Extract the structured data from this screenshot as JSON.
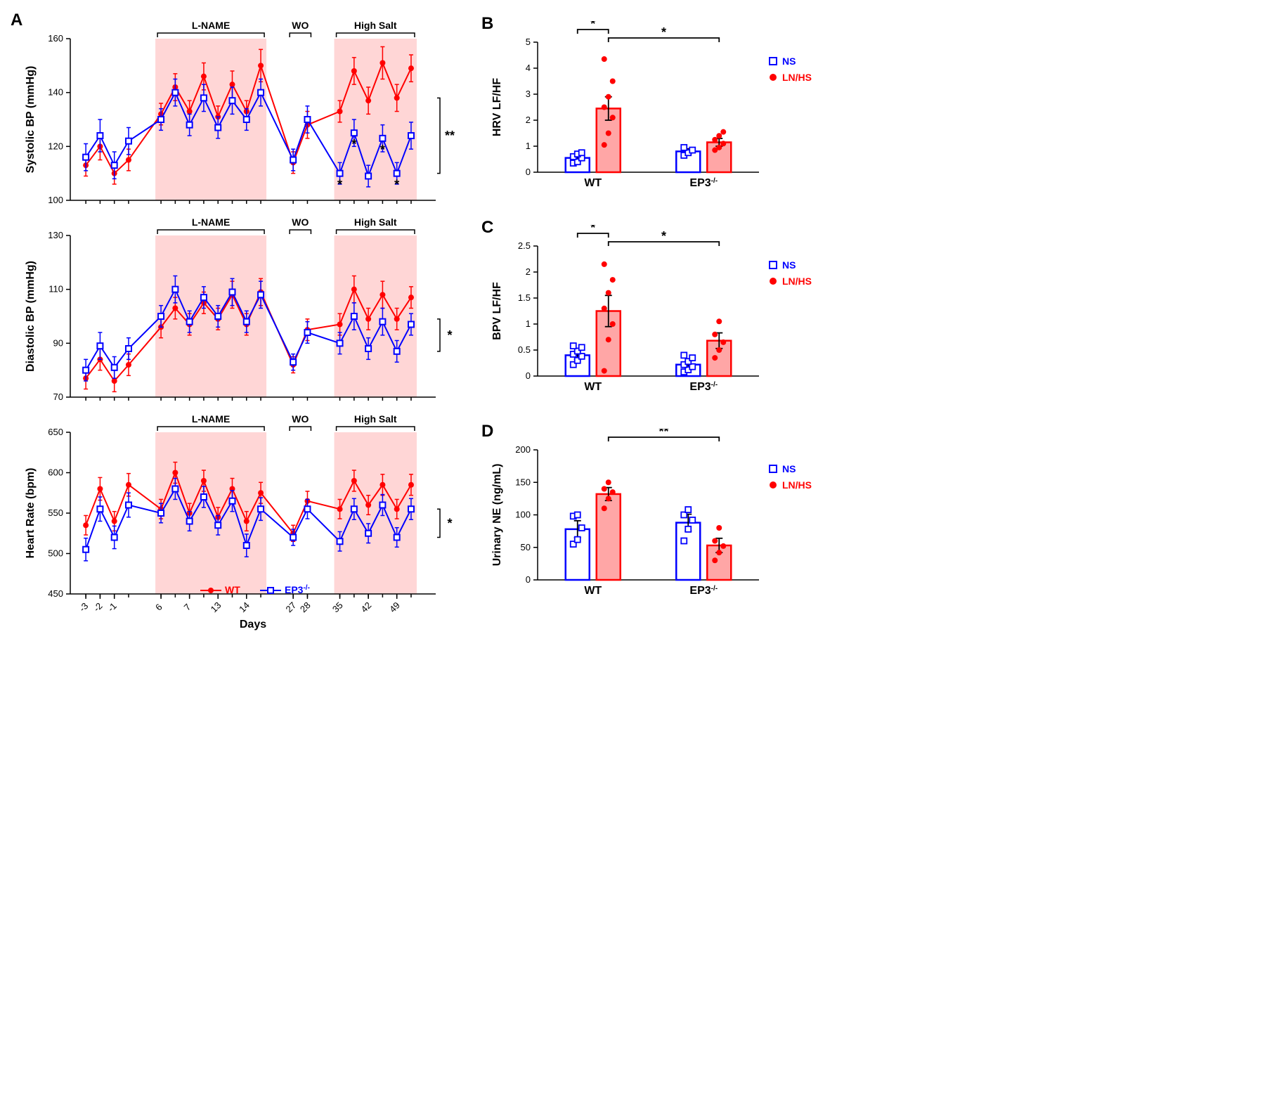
{
  "colors": {
    "wt": "#ff0000",
    "ep3": "#0000ff",
    "shade": "#ffd6d6",
    "black": "#000000"
  },
  "panelA": {
    "label": "A",
    "xlabel": "Days",
    "xticks": [
      "-3",
      "-2",
      "-1",
      "6",
      "7",
      "13",
      "14",
      "27",
      "28",
      "35",
      "42",
      "49"
    ],
    "phases": {
      "lname": "L-NAME",
      "wo": "WO",
      "hs": "High Salt"
    },
    "legend": {
      "wt": "WT",
      "ep3_html": "EP3",
      "ep3_sup": "-/-"
    },
    "sbp": {
      "ylabel": "Systolic BP (mmHg)",
      "ylim": [
        100,
        160
      ],
      "ytick": 20,
      "wt": [
        113,
        120,
        110,
        115,
        132,
        142,
        133,
        146,
        131,
        143,
        133,
        150,
        114,
        128,
        133,
        148,
        137,
        151,
        138,
        149
      ],
      "ep3": [
        116,
        124,
        113,
        122,
        130,
        140,
        128,
        138,
        127,
        137,
        130,
        140,
        115,
        130,
        110,
        125,
        109,
        123,
        110,
        124
      ],
      "err_wt": [
        4,
        5,
        4,
        4,
        4,
        5,
        4,
        5,
        4,
        5,
        4,
        6,
        4,
        5,
        4,
        5,
        5,
        6,
        5,
        5
      ],
      "err_ep3": [
        5,
        6,
        5,
        5,
        4,
        5,
        4,
        5,
        4,
        5,
        4,
        5,
        4,
        5,
        4,
        5,
        4,
        5,
        4,
        5
      ],
      "sig_right": "**",
      "sig_points": [
        "",
        "",
        "",
        "",
        "",
        "",
        "",
        "",
        "",
        "",
        "",
        "",
        "",
        "",
        "*",
        "*",
        "",
        "*",
        "*",
        ""
      ]
    },
    "dbp": {
      "ylabel": "Diastolic BP (mmHg)",
      "ylim": [
        70,
        130
      ],
      "ytick": 20,
      "wt": [
        77,
        84,
        76,
        82,
        96,
        103,
        97,
        105,
        99,
        108,
        97,
        109,
        82,
        95,
        97,
        110,
        99,
        108,
        99,
        107
      ],
      "ep3": [
        80,
        89,
        81,
        88,
        100,
        110,
        98,
        107,
        100,
        109,
        98,
        108,
        83,
        94,
        90,
        100,
        88,
        98,
        87,
        97
      ],
      "err_wt": [
        4,
        4,
        4,
        4,
        4,
        4,
        4,
        4,
        4,
        5,
        4,
        5,
        3,
        4,
        4,
        5,
        4,
        5,
        4,
        4
      ],
      "err_ep3": [
        4,
        5,
        4,
        4,
        4,
        5,
        4,
        4,
        4,
        5,
        4,
        5,
        3,
        4,
        4,
        5,
        4,
        5,
        4,
        4
      ],
      "sig_right": "*"
    },
    "hr": {
      "ylabel": "Heart Rate (bpm)",
      "ylim": [
        450,
        650
      ],
      "ytick": 50,
      "wt": [
        535,
        580,
        540,
        585,
        555,
        600,
        550,
        590,
        545,
        580,
        540,
        575,
        525,
        565,
        555,
        590,
        560,
        585,
        555,
        585
      ],
      "ep3": [
        505,
        555,
        520,
        560,
        550,
        580,
        540,
        570,
        535,
        565,
        510,
        555,
        520,
        555,
        515,
        555,
        525,
        560,
        520,
        555
      ],
      "err_wt": [
        12,
        14,
        12,
        14,
        12,
        13,
        12,
        13,
        12,
        13,
        12,
        13,
        10,
        12,
        12,
        13,
        12,
        13,
        12,
        13
      ],
      "err_ep3": [
        14,
        15,
        14,
        15,
        12,
        13,
        12,
        13,
        12,
        13,
        14,
        14,
        10,
        12,
        12,
        13,
        12,
        13,
        12,
        13
      ],
      "sig_right": "*"
    }
  },
  "panelB": {
    "label": "B",
    "ylabel": "HRV LF/HF",
    "ylim": [
      0,
      5
    ],
    "ytick": 1,
    "xcats": [
      "WT",
      "EP3"
    ],
    "legend": {
      "ns": "NS",
      "ln": "LN/HS"
    },
    "bars": {
      "wt_ns": {
        "mean": 0.55,
        "err": 0.12,
        "pts": [
          0.35,
          0.4,
          0.55,
          0.6,
          0.7,
          0.75
        ]
      },
      "wt_ln": {
        "mean": 2.45,
        "err": 0.45,
        "pts": [
          1.05,
          1.5,
          2.1,
          2.5,
          2.9,
          3.5,
          4.35
        ]
      },
      "ep3_ns": {
        "mean": 0.8,
        "err": 0.1,
        "pts": [
          0.65,
          0.75,
          0.85,
          0.95
        ]
      },
      "ep3_ln": {
        "mean": 1.15,
        "err": 0.15,
        "pts": [
          0.85,
          0.95,
          1.1,
          1.25,
          1.4,
          1.55
        ]
      }
    },
    "sig": [
      {
        "from": 0,
        "to": 1,
        "label": "*"
      },
      {
        "from": 1,
        "to": 3,
        "label": "*"
      }
    ]
  },
  "panelC": {
    "label": "C",
    "ylabel": "BPV LF/HF",
    "ylim": [
      0,
      2.5
    ],
    "ytick": 0.5,
    "xcats": [
      "WT",
      "EP3"
    ],
    "legend": {
      "ns": "NS",
      "ln": "LN/HS"
    },
    "bars": {
      "wt_ns": {
        "mean": 0.4,
        "err": 0.08,
        "pts": [
          0.22,
          0.3,
          0.38,
          0.42,
          0.48,
          0.55,
          0.58
        ]
      },
      "wt_ln": {
        "mean": 1.25,
        "err": 0.3,
        "pts": [
          0.1,
          0.7,
          1.0,
          1.3,
          1.6,
          1.85,
          2.15
        ]
      },
      "ep3_ns": {
        "mean": 0.22,
        "err": 0.06,
        "pts": [
          0.08,
          0.12,
          0.18,
          0.22,
          0.28,
          0.35,
          0.4
        ]
      },
      "ep3_ln": {
        "mean": 0.68,
        "err": 0.15,
        "pts": [
          0.35,
          0.5,
          0.65,
          0.8,
          1.05
        ]
      }
    },
    "sig": [
      {
        "from": 0,
        "to": 1,
        "label": "*"
      },
      {
        "from": 1,
        "to": 3,
        "label": "*"
      }
    ]
  },
  "panelD": {
    "label": "D",
    "ylabel": "Urinary NE (ng/mL)",
    "ylim": [
      0,
      200
    ],
    "ytick": 50,
    "xcats": [
      "WT",
      "EP3"
    ],
    "legend": {
      "ns": "NS",
      "ln": "LN/HS"
    },
    "bars": {
      "wt_ns": {
        "mean": 78,
        "err": 13,
        "pts": [
          55,
          62,
          80,
          98,
          100
        ]
      },
      "wt_ln": {
        "mean": 132,
        "err": 10,
        "pts": [
          110,
          125,
          135,
          140,
          150
        ]
      },
      "ep3_ns": {
        "mean": 88,
        "err": 13,
        "pts": [
          60,
          78,
          92,
          100,
          108
        ]
      },
      "ep3_ln": {
        "mean": 53,
        "err": 11,
        "pts": [
          30,
          42,
          52,
          60,
          80
        ]
      }
    },
    "sig": [
      {
        "from": 1,
        "to": 3,
        "label": "**"
      }
    ]
  }
}
